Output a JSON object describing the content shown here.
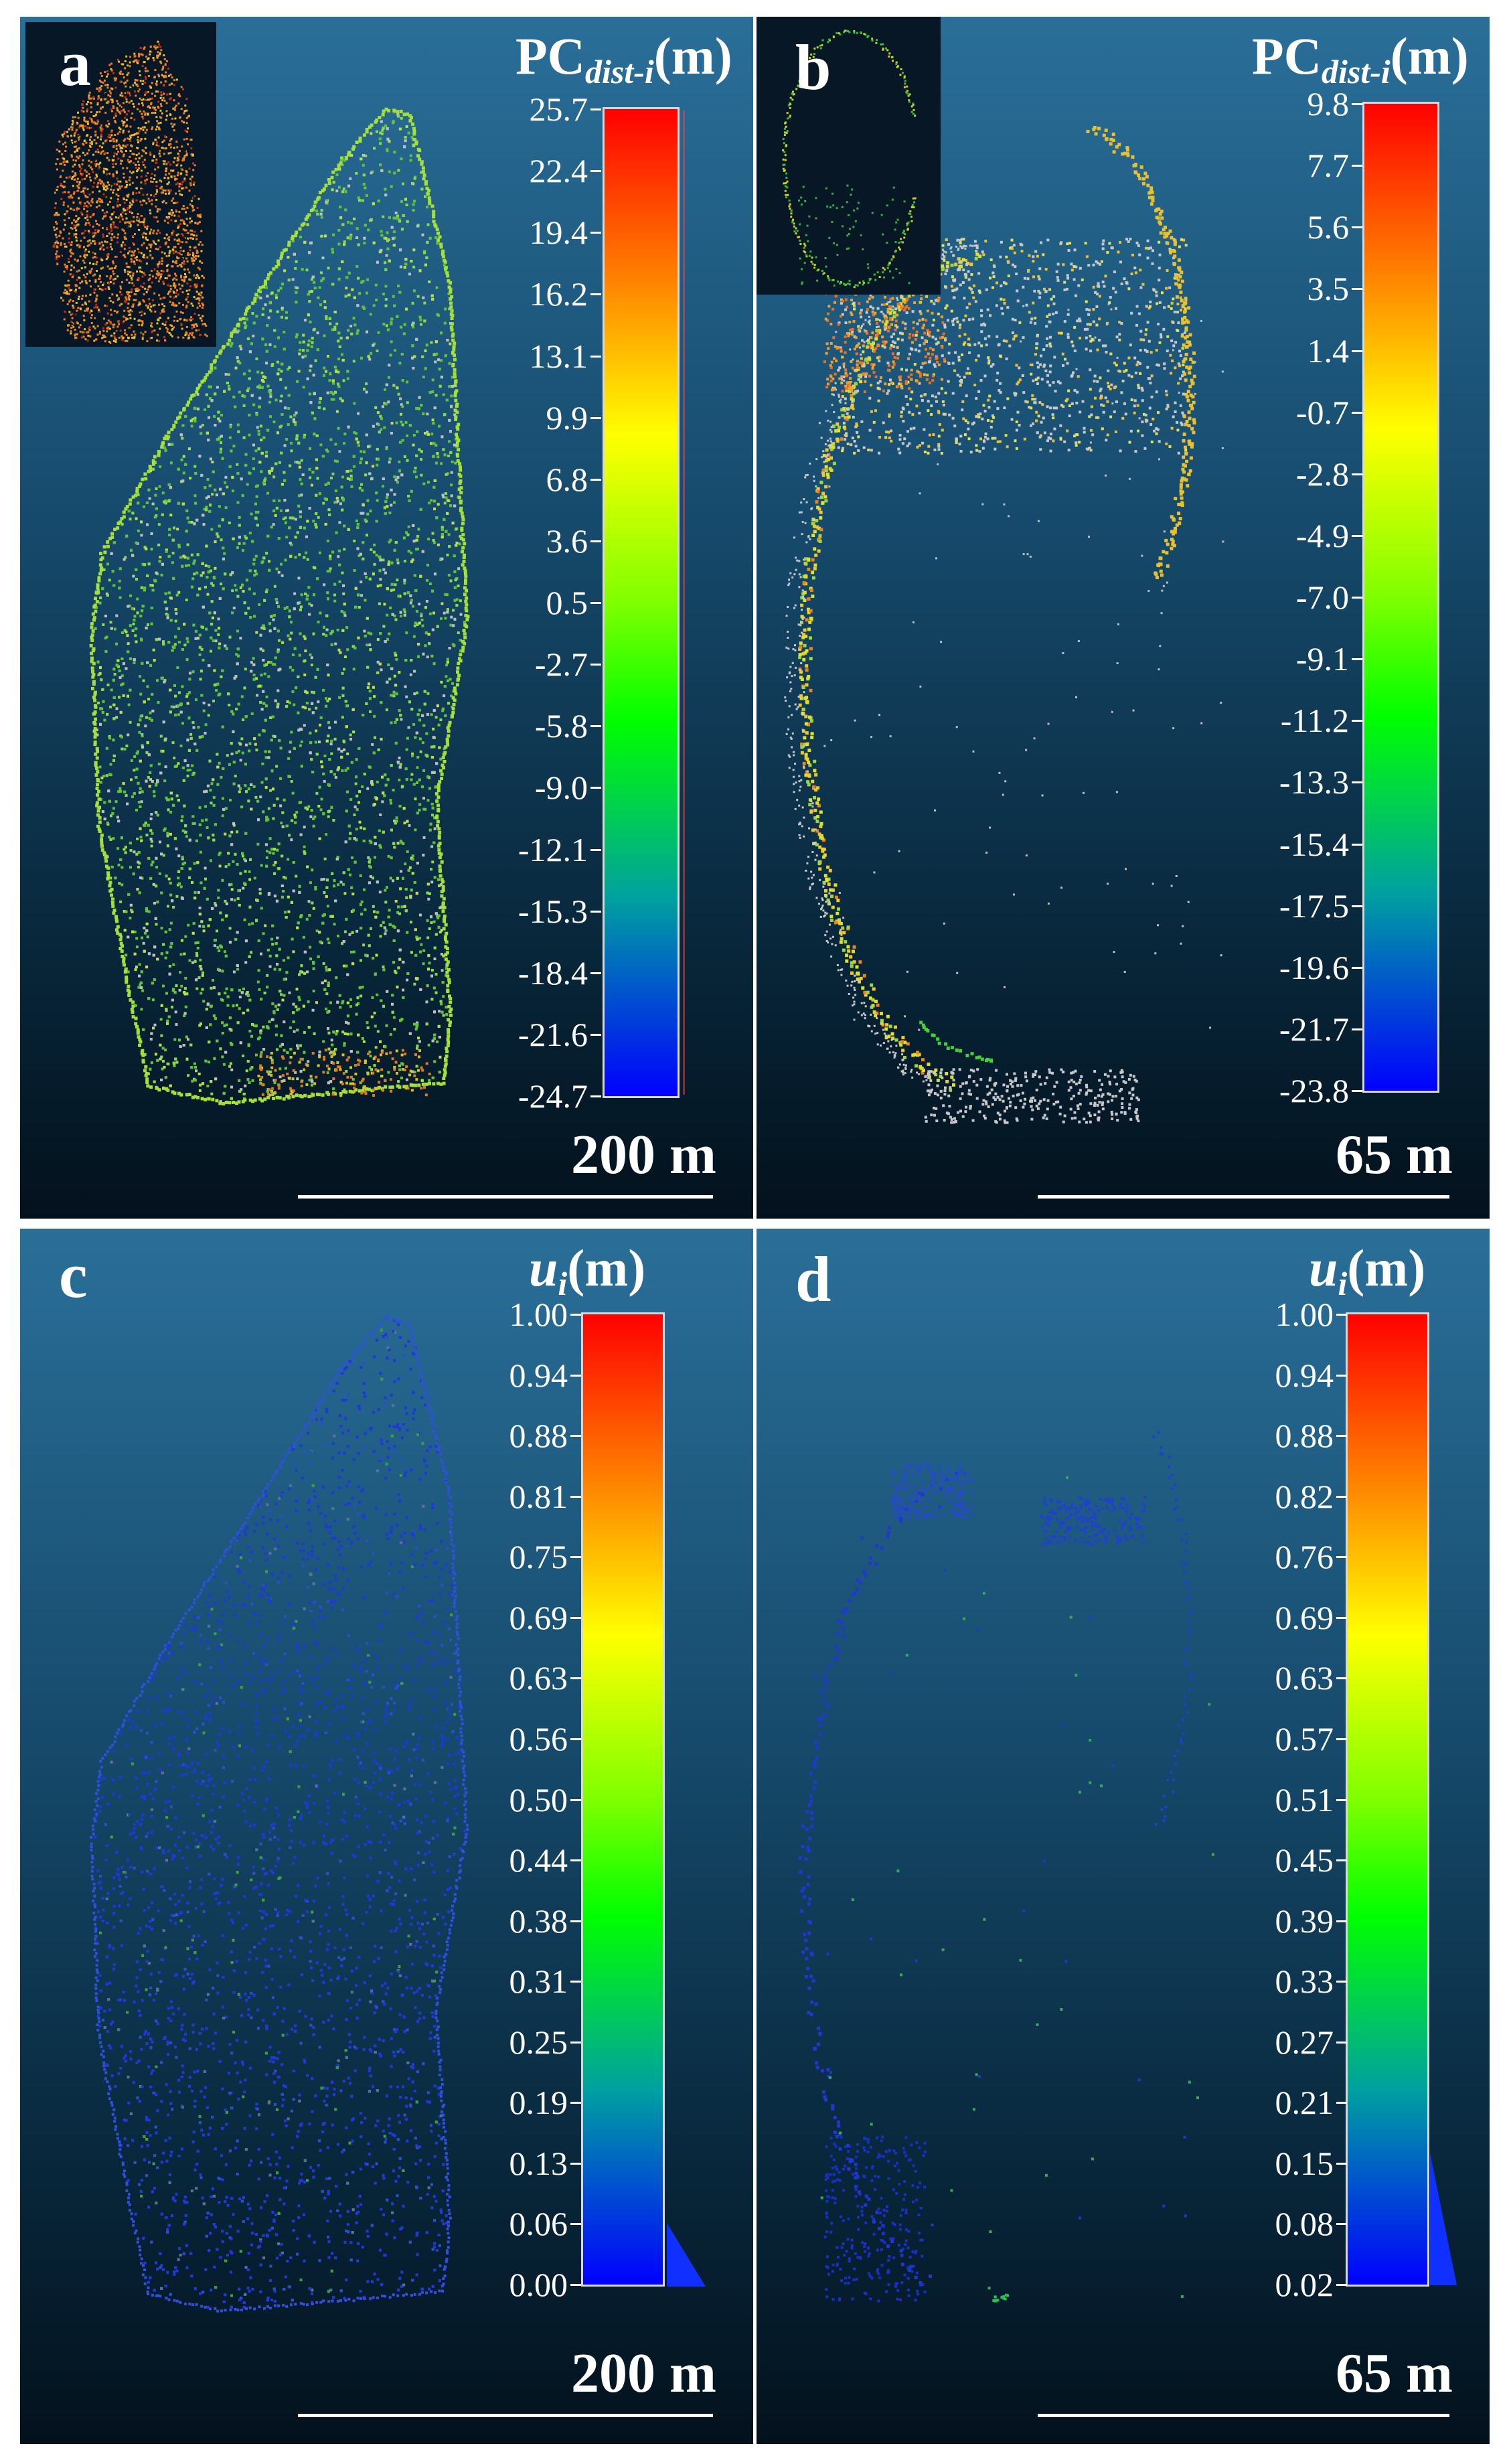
{
  "panels": {
    "a": {
      "label": "a",
      "colorbar_title_main": "PC",
      "colorbar_title_sub": "dist-i",
      "colorbar_title_unit": "(m)",
      "ticks": [
        "25.7",
        "22.4",
        "19.4",
        "16.2",
        "13.1",
        "9.9",
        "6.8",
        "3.6",
        "0.5",
        "-2.7",
        "-5.8",
        "-9.0",
        "-12.1",
        "-15.3",
        "-18.4",
        "-21.6",
        "-24.7"
      ],
      "scale_label": "200 m"
    },
    "b": {
      "label": "b",
      "colorbar_title_main": "PC",
      "colorbar_title_sub": "dist-i",
      "colorbar_title_unit": "(m)",
      "ticks": [
        "9.8",
        "7.7",
        "5.6",
        "3.5",
        "1.4",
        "-0.7",
        "-2.8",
        "-4.9",
        "-7.0",
        "-9.1",
        "-11.2",
        "-13.3",
        "-15.4",
        "-17.5",
        "-19.6",
        "-21.7",
        "-23.8"
      ],
      "scale_label": "65 m"
    },
    "c": {
      "label": "c",
      "colorbar_title_main": "u",
      "colorbar_title_sub": "i",
      "colorbar_title_unit": "(m)",
      "ticks": [
        "1.00",
        "0.94",
        "0.88",
        "0.81",
        "0.75",
        "0.69",
        "0.63",
        "0.56",
        "0.50",
        "0.44",
        "0.38",
        "0.31",
        "0.25",
        "0.19",
        "0.13",
        "0.06",
        "0.00"
      ],
      "scale_label": "200 m"
    },
    "d": {
      "label": "d",
      "colorbar_title_main": "u",
      "colorbar_title_sub": "i",
      "colorbar_title_unit": "(m)",
      "ticks": [
        "1.00",
        "0.94",
        "0.88",
        "0.82",
        "0.76",
        "0.69",
        "0.63",
        "0.57",
        "0.51",
        "0.45",
        "0.39",
        "0.33",
        "0.27",
        "0.21",
        "0.15",
        "0.08",
        "0.02"
      ],
      "scale_label": "65 m"
    }
  },
  "colors": {
    "background_top": "#2a6f99",
    "background_bottom": "#03111c",
    "colormap": [
      "#ff0000",
      "#ff8000",
      "#ffff00",
      "#7fff00",
      "#00ff00",
      "#00a0a0",
      "#0000ff"
    ],
    "unchanged_points": "#c8c8c8"
  }
}
